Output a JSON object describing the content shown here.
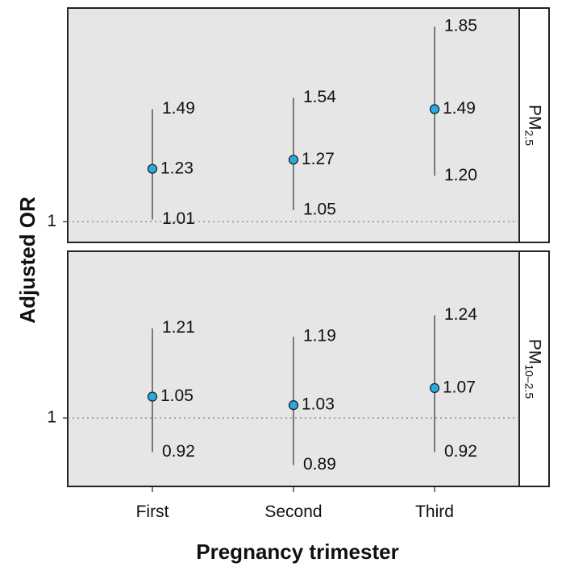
{
  "chart_data": {
    "type": "scatter",
    "subtype": "point-range facets",
    "xlabel": "Pregnancy trimester",
    "ylabel": "Adjusted OR",
    "categories": [
      "First",
      "Second",
      "Third"
    ],
    "reference_line": 1,
    "reference_tick_label": "1",
    "panels": [
      {
        "strip_main": "PM",
        "strip_sub": "2.5",
        "ylim": [
          0.91,
          1.93
        ],
        "points": [
          {
            "category": "First",
            "estimate": 1.23,
            "lower": 1.01,
            "upper": 1.49,
            "estimate_label": "1.23",
            "lower_label": "1.01",
            "upper_label": "1.49"
          },
          {
            "category": "Second",
            "estimate": 1.27,
            "lower": 1.05,
            "upper": 1.54,
            "estimate_label": "1.27",
            "lower_label": "1.05",
            "upper_label": "1.54"
          },
          {
            "category": "Third",
            "estimate": 1.49,
            "lower": 1.2,
            "upper": 1.85,
            "estimate_label": "1.49",
            "lower_label": "1.20",
            "upper_label": "1.85"
          }
        ]
      },
      {
        "strip_main": "PM",
        "strip_sub": "10–2.5",
        "ylim": [
          0.84,
          1.39
        ],
        "points": [
          {
            "category": "First",
            "estimate": 1.05,
            "lower": 0.92,
            "upper": 1.21,
            "estimate_label": "1.05",
            "lower_label": "0.92",
            "upper_label": "1.21"
          },
          {
            "category": "Second",
            "estimate": 1.03,
            "lower": 0.89,
            "upper": 1.19,
            "estimate_label": "1.03",
            "lower_label": "0.89",
            "upper_label": "1.19"
          },
          {
            "category": "Third",
            "estimate": 1.07,
            "lower": 0.92,
            "upper": 1.24,
            "estimate_label": "1.07",
            "lower_label": "0.92",
            "upper_label": "1.24"
          }
        ]
      }
    ],
    "grid": false,
    "colors": {
      "point_fill": "#29a9e1",
      "panel_background": "#e6e6e6"
    }
  }
}
